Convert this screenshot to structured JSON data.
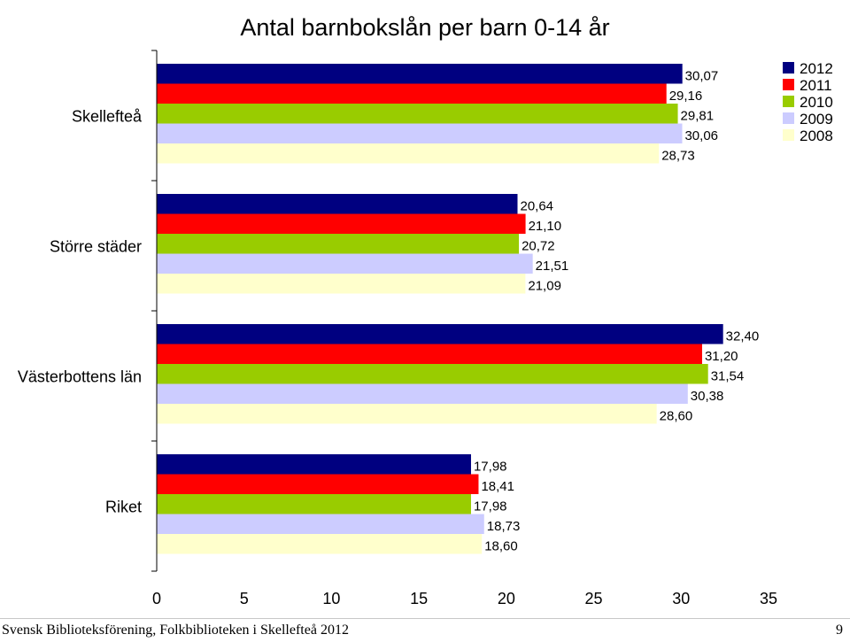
{
  "chart_data": {
    "type": "bar",
    "orientation": "horizontal",
    "title": "Antal barnbokslån per barn 0-14 år",
    "xlabel": "",
    "ylabel": "",
    "xlim": [
      0,
      35
    ],
    "xticks": [
      "0",
      "5",
      "10",
      "15",
      "20",
      "25",
      "30",
      "35"
    ],
    "grid": false,
    "legend_position": "top-right",
    "categories": [
      "Skellefteå",
      "Större städer",
      "Västerbottens län",
      "Riket"
    ],
    "series": [
      {
        "name": "2012",
        "color": "#000080",
        "values": [
          30.07,
          20.64,
          32.4,
          17.98
        ],
        "labels": [
          "30,07",
          "20,64",
          "32,40",
          "17,98"
        ]
      },
      {
        "name": "2011",
        "color": "#ff0000",
        "values": [
          29.16,
          21.1,
          31.2,
          18.41
        ],
        "labels": [
          "29,16",
          "21,10",
          "31,20",
          "18,41"
        ]
      },
      {
        "name": "2010",
        "color": "#99cc00",
        "values": [
          29.81,
          20.72,
          31.54,
          17.98
        ],
        "labels": [
          "29,81",
          "20,72",
          "31,54",
          "17,98"
        ]
      },
      {
        "name": "2009",
        "color": "#ccccff",
        "values": [
          30.06,
          21.51,
          30.38,
          18.73
        ],
        "labels": [
          "30,06",
          "21,51",
          "30,38",
          "18,73"
        ]
      },
      {
        "name": "2008",
        "color": "#ffffcc",
        "values": [
          28.73,
          21.09,
          28.6,
          18.6
        ],
        "labels": [
          "28,73",
          "21,09",
          "28,60",
          "18,60"
        ]
      }
    ]
  },
  "footer": {
    "source": "Svensk Biblioteksförening, Folkbiblioteken i Skellefteå 2012",
    "page_number": "9"
  }
}
